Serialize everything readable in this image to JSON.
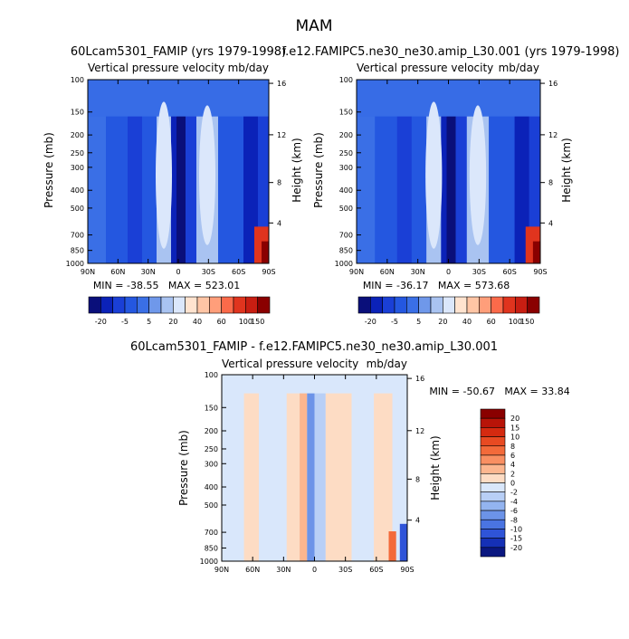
{
  "page_title": "MAM",
  "panels": [
    {
      "title": "60Lcam5301_FAMIP (yrs 1979-1998)",
      "subtitle": "Vertical pressure velocity",
      "units": "mb/day",
      "ylabel": "Pressure (mb)",
      "ylabel_right": "Height (km)",
      "minmax": "MIN = -38.55   MAX = 523.01"
    },
    {
      "title": "f.e12.FAMIPC5.ne30_ne30.amip_L30.001 (yrs 1979-1998)",
      "subtitle": "Vertical pressure velocity",
      "units": "mb/day",
      "ylabel": "Pressure (mb)",
      "ylabel_right": "Height (km)",
      "minmax": "MIN = -36.17   MAX = 573.68"
    },
    {
      "title": "60Lcam5301_FAMIP - f.e12.FAMIPC5.ne30_ne30.amip_L30.001",
      "subtitle": "Vertical pressure velocity",
      "units": "mb/day",
      "ylabel": "Pressure (mb)",
      "ylabel_right": "Height (km)",
      "minmax": "MIN = -50.67   MAX = 33.84"
    }
  ],
  "top_colorbar_labels": [
    "-20",
    "-5",
    "5",
    "20",
    "40",
    "60",
    "100",
    "150"
  ],
  "diff_colorbar_labels": [
    "20",
    "15",
    "10",
    "8",
    "6",
    "4",
    "2",
    "0",
    "-2",
    "-4",
    "-6",
    "-8",
    "-10",
    "-15",
    "-20"
  ],
  "colors": {
    "top_scale": [
      "#0a0f7a",
      "#0b22b8",
      "#1a3fd6",
      "#2457e0",
      "#3a6fe6",
      "#6f98ea",
      "#a9c3f1",
      "#dbe7fb",
      "#ffe3cf",
      "#ffc5a5",
      "#ff9e7a",
      "#fb6a4a",
      "#e0341e",
      "#c81e12",
      "#8a0000"
    ],
    "diff_scale": [
      "#8a0000",
      "#b81408",
      "#d52a10",
      "#e84a22",
      "#f36a3a",
      "#f98f62",
      "#fcb68f",
      "#fddcc4",
      "#d9e7fb",
      "#b8cff6",
      "#93b4f0",
      "#6c93e8",
      "#4a74e2",
      "#2f54d8",
      "#1530b6",
      "#0a1780"
    ]
  },
  "chart_data": [
    {
      "type": "heatmap",
      "title": "60Lcam5301_FAMIP (yrs 1979-1998)",
      "subtitle": "Vertical pressure velocity",
      "units": "mb/day",
      "x_ticks": [
        "90N",
        "60N",
        "30N",
        "0",
        "30S",
        "60S",
        "90S"
      ],
      "y_ticks": [
        1000,
        850,
        700,
        500,
        400,
        300,
        250,
        200,
        150,
        100
      ],
      "y_right_ticks": [
        4,
        8,
        12,
        16
      ],
      "ylabel": "Pressure (mb)",
      "ylabel_right": "Height (km)",
      "min": -38.55,
      "max": 523.01,
      "colorbar_levels": [
        -20,
        -15,
        -10,
        -5,
        0,
        5,
        10,
        20,
        30,
        40,
        50,
        60,
        80,
        100,
        150
      ]
    },
    {
      "type": "heatmap",
      "title": "f.e12.FAMIPC5.ne30_ne30.amip_L30.001 (yrs 1979-1998)",
      "subtitle": "Vertical pressure velocity",
      "units": "mb/day",
      "x_ticks": [
        "90N",
        "60N",
        "30N",
        "0",
        "30S",
        "60S",
        "90S"
      ],
      "y_ticks": [
        1000,
        850,
        700,
        500,
        400,
        300,
        250,
        200,
        150,
        100
      ],
      "y_right_ticks": [
        4,
        8,
        12,
        16
      ],
      "ylabel": "Pressure (mb)",
      "ylabel_right": "Height (km)",
      "min": -36.17,
      "max": 573.68,
      "colorbar_levels": [
        -20,
        -15,
        -10,
        -5,
        0,
        5,
        10,
        20,
        30,
        40,
        50,
        60,
        80,
        100,
        150
      ]
    },
    {
      "type": "heatmap",
      "title": "60Lcam5301_FAMIP - f.e12.FAMIPC5.ne30_ne30.amip_L30.001",
      "subtitle": "Vertical pressure velocity",
      "units": "mb/day",
      "x_ticks": [
        "90N",
        "60N",
        "30N",
        "0",
        "30S",
        "60S",
        "90S"
      ],
      "y_ticks": [
        1000,
        850,
        700,
        500,
        400,
        300,
        250,
        200,
        150,
        100
      ],
      "y_right_ticks": [
        4,
        8,
        12,
        16
      ],
      "ylabel": "Pressure (mb)",
      "ylabel_right": "Height (km)",
      "min": -50.67,
      "max": 33.84,
      "colorbar_levels": [
        20,
        15,
        10,
        8,
        6,
        4,
        2,
        0,
        -2,
        -4,
        -6,
        -8,
        -10,
        -15,
        -20
      ]
    }
  ]
}
